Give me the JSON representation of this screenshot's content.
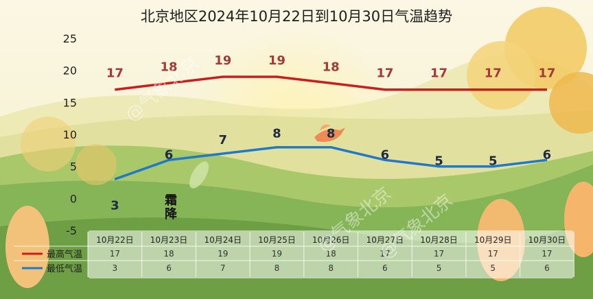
{
  "title": "北京地区2024年10月22日到10月30日气温趋势",
  "watermark": "@气象北京",
  "solar_term": "霜降",
  "chart_data": {
    "type": "line",
    "title": "北京地区2024年10月22日到10月30日气温趋势",
    "categories": [
      "10月22日",
      "10月23日",
      "10月24日",
      "10月25日",
      "10月26日",
      "10月27日",
      "10月28日",
      "10月29日",
      "10月30日"
    ],
    "series": [
      {
        "name": "最高气温",
        "values": [
          17,
          18,
          19,
          19,
          18,
          17,
          17,
          17,
          17
        ],
        "color": "#c81e1e",
        "label_color": "#a23a3a"
      },
      {
        "name": "最低气温",
        "values": [
          3,
          6,
          7,
          8,
          8,
          6,
          5,
          5,
          6
        ],
        "color": "#1f78c8",
        "label_color": "#1f2a44"
      }
    ],
    "yticks": [
      -5,
      0,
      5,
      10,
      15,
      20,
      25
    ],
    "ylim": [
      -5,
      25
    ],
    "grid": false,
    "legend": "bottom-left in data table"
  }
}
